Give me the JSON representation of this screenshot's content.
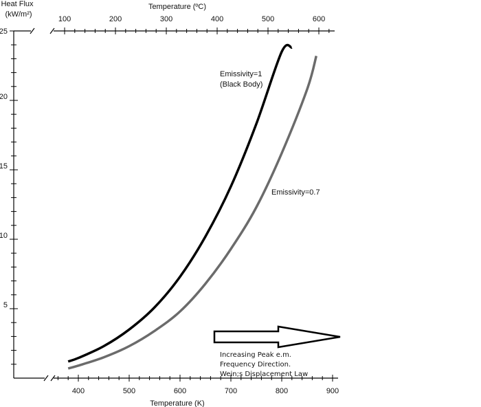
{
  "chart_data": {
    "type": "line",
    "title": "",
    "ylabel_line1": "Heat Flux",
    "ylabel_line2": "(kW/m²)",
    "xlabel_bottom": "Temperature (K)",
    "xlabel_top": "Temperature (ºC)",
    "ylim": [
      0,
      25
    ],
    "xlim_K": [
      350,
      910
    ],
    "y_ticks": [
      "5",
      "10",
      "15",
      "20",
      "25"
    ],
    "x_ticks_K": [
      "400",
      "500",
      "600",
      "700",
      "800",
      "900"
    ],
    "x_ticks_C": [
      "100",
      "200",
      "300",
      "400",
      "500",
      "600"
    ],
    "x_values_K": [
      373,
      473,
      573,
      673,
      773,
      873
    ],
    "series": [
      {
        "name": "Emissivity=1",
        "name_sub": "(Black Body)",
        "color": "#000000",
        "x": [
          380,
          400,
          450,
          500,
          550,
          600,
          650,
          700,
          750,
          800,
          820
        ],
        "y": [
          1.2,
          1.45,
          2.3,
          3.5,
          5.1,
          7.3,
          10.2,
          13.8,
          18.3,
          23.5,
          23.8
        ]
      },
      {
        "name": "Emissivity=0.7",
        "color": "#6b6b6b",
        "x": [
          380,
          400,
          450,
          500,
          550,
          600,
          650,
          700,
          750,
          800,
          850,
          868
        ],
        "y": [
          0.7,
          0.9,
          1.5,
          2.3,
          3.4,
          4.8,
          6.8,
          9.3,
          12.3,
          16.2,
          20.8,
          23.2
        ]
      }
    ],
    "annotation": {
      "line1": "Increasing Peak e.m.",
      "line2": "Frequency Direction.",
      "line3": "Wein;s Displacement Law"
    }
  }
}
